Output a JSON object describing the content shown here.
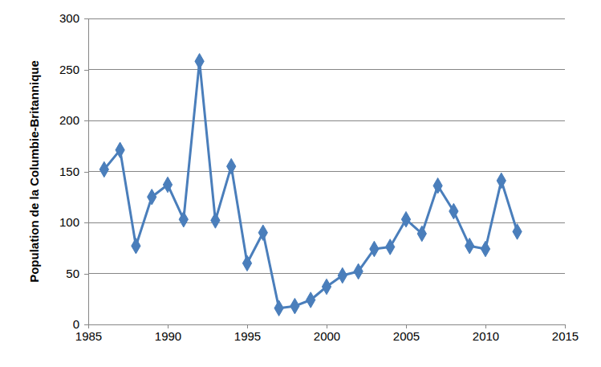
{
  "chart_data": {
    "type": "line",
    "y_label": "Population de la Columbie-Britannique",
    "x": [
      1986,
      1987,
      1988,
      1989,
      1990,
      1991,
      1992,
      1993,
      1994,
      1995,
      1996,
      1997,
      1998,
      1999,
      2000,
      2001,
      2002,
      2003,
      2004,
      2005,
      2006,
      2007,
      2008,
      2009,
      2010,
      2011,
      2012
    ],
    "values": [
      152,
      171,
      77,
      125,
      137,
      103,
      258,
      102,
      155,
      60,
      90,
      16,
      18,
      24,
      37,
      48,
      52,
      74,
      76,
      103,
      89,
      136,
      111,
      77,
      74,
      141,
      91
    ],
    "color": "#4a7ebb",
    "marker": "diamond",
    "line_style": "solid",
    "xlim": [
      1985,
      2015
    ],
    "xticks": [
      1985,
      1990,
      1995,
      2000,
      2005,
      2010,
      2015
    ],
    "ylim": [
      0,
      300
    ],
    "yticks": [
      0,
      50,
      100,
      150,
      200,
      250,
      300
    ],
    "grid": true
  }
}
